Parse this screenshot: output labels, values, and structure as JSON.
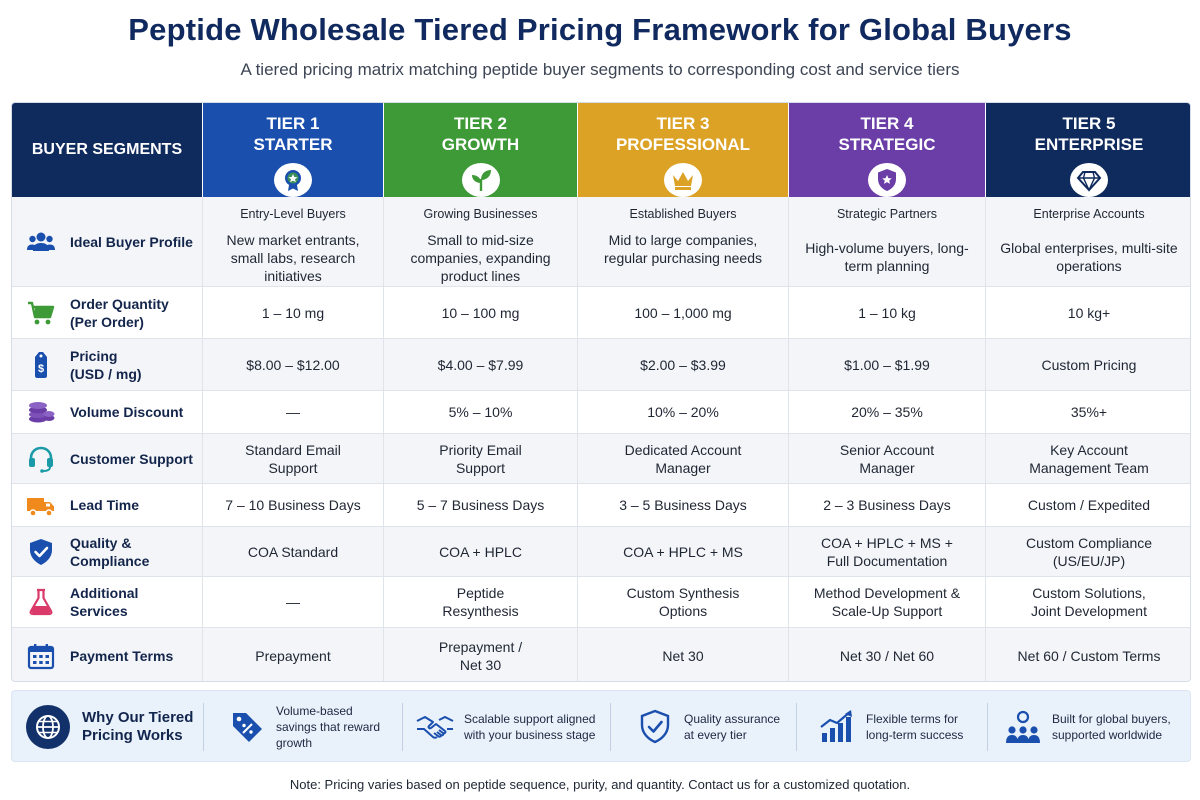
{
  "header": {
    "title": "Peptide Wholesale Tiered Pricing Framework for Global Buyers",
    "subtitle": "A tiered pricing matrix matching peptide buyer segments to corresponding cost and service tiers"
  },
  "matrix": {
    "segments_label": "BUYER SEGMENTS",
    "tiers": [
      {
        "line1": "TIER 1",
        "line2": "STARTER",
        "color": "#1a4fae",
        "icon": "medal-icon"
      },
      {
        "line1": "TIER 2",
        "line2": "GROWTH",
        "color": "#3d9a36",
        "icon": "sprout-icon"
      },
      {
        "line1": "TIER 3",
        "line2": "PROFESSIONAL",
        "color": "#dca225",
        "icon": "crown-icon"
      },
      {
        "line1": "TIER 4",
        "line2": "STRATEGIC",
        "color": "#6a3ea6",
        "icon": "shield-star-icon"
      },
      {
        "line1": "TIER 5",
        "line2": "ENTERPRISE",
        "color": "#0f2a5c",
        "icon": "diamond-icon"
      }
    ],
    "rows": [
      {
        "label": "Ideal Buyer Profile",
        "icon": "users-icon",
        "segments": [
          "Entry-Level Buyers",
          "Growing Businesses",
          "Established Buyers",
          "Strategic Partners",
          "Enterprise Accounts"
        ],
        "values": [
          "New market entrants, small labs, research initiatives",
          "Small to mid-size companies, expanding product lines",
          "Mid to large companies, regular purchasing needs",
          "High-volume buyers, long-term planning",
          "Global enterprises, multi-site operations"
        ]
      },
      {
        "label": "Order Quantity (Per Order)",
        "icon": "cart-icon",
        "values": [
          "1 – 10 mg",
          "10 – 100 mg",
          "100 – 1,000 mg",
          "1 – 10 kg",
          "10 kg+"
        ]
      },
      {
        "label": "Pricing (USD / mg)",
        "icon": "price-tag-icon",
        "values": [
          "$8.00 – $12.00",
          "$4.00 – $7.99",
          "$2.00 – $3.99",
          "$1.00 – $1.99",
          "Custom Pricing"
        ]
      },
      {
        "label": "Volume Discount",
        "icon": "coins-icon",
        "values": [
          "—",
          "5% – 10%",
          "10% – 20%",
          "20% – 35%",
          "35%+"
        ]
      },
      {
        "label": "Customer Support",
        "icon": "headset-icon",
        "values": [
          "Standard Email Support",
          "Priority Email Support",
          "Dedicated Account Manager",
          "Senior Account Manager",
          "Key Account Management Team"
        ]
      },
      {
        "label": "Lead Time",
        "icon": "truck-icon",
        "values": [
          "7 – 10 Business Days",
          "5 – 7 Business Days",
          "3 – 5 Business Days",
          "2 – 3 Business Days",
          "Custom / Expedited"
        ]
      },
      {
        "label": "Quality & Compliance",
        "icon": "shield-check-icon",
        "values": [
          "COA Standard",
          "COA + HPLC",
          "COA + HPLC + MS",
          "COA + HPLC + MS + Full Documentation",
          "Custom Compliance (US/EU/JP)"
        ]
      },
      {
        "label": "Additional Services",
        "icon": "flask-icon",
        "values": [
          "—",
          "Peptide Resynthesis",
          "Custom Synthesis Options",
          "Method Development & Scale-Up Support",
          "Custom Solutions, Joint Development"
        ]
      },
      {
        "label": "Payment Terms",
        "icon": "calendar-icon",
        "values": [
          "Prepayment",
          "Prepayment / Net 30",
          "Net 30",
          "Net 30 / Net 60",
          "Net 60 / Custom Terms"
        ]
      }
    ]
  },
  "why": {
    "lead": "Why Our Tiered Pricing Works",
    "items": [
      {
        "text": "Volume-based savings that reward growth",
        "icon": "discount-tag-icon"
      },
      {
        "text": "Scalable support aligned with your business stage",
        "icon": "handshake-icon"
      },
      {
        "text": "Quality assurance at every tier",
        "icon": "shield-check-icon"
      },
      {
        "text": "Flexible terms for long-term success",
        "icon": "growth-chart-icon"
      },
      {
        "text": "Built for global buyers, supported worldwide",
        "icon": "team-icon"
      }
    ]
  },
  "footer": {
    "note": "Note: Pricing varies based on peptide sequence, purity, and quantity. Contact us for a customized quotation."
  }
}
